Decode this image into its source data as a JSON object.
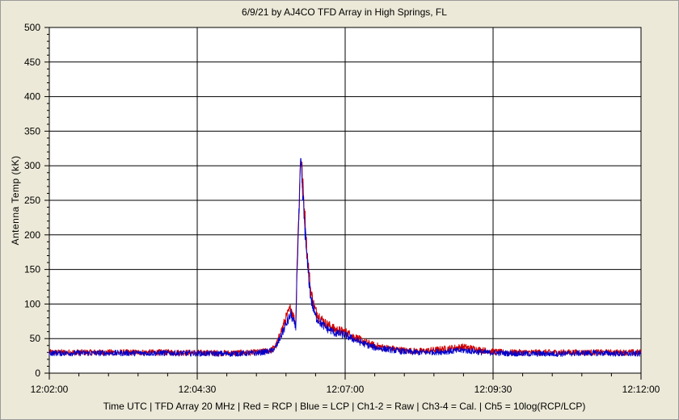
{
  "title": "6/9/21  by  AJ4CO TFD Array  in  High Springs, FL",
  "footer": "Time UTC | TFD Array 20 MHz | Red = RCP | Blue = LCP | Ch1-2 = Raw | Ch3-4 = Cal. | Ch5 = 10log(RCP/LCP)",
  "colors": {
    "background": "#ece9d8",
    "plot_background": "#ffffff",
    "grid": "#000000",
    "rcp": "#d00000",
    "lcp": "#0000cc",
    "ch5": "#008000"
  },
  "chart_data": {
    "type": "line",
    "title": "6/9/21  by  AJ4CO TFD Array  in  High Springs, FL",
    "xlabel": "Time UTC | TFD Array 20 MHz | Red = RCP | Blue = LCP | Ch1-2 = Raw | Ch3-4 = Cal. | Ch5 = 10log(RCP/LCP)",
    "ylabel": "Antenna Temp (kK)",
    "xlim": [
      "12:02:00",
      "12:12:00"
    ],
    "ylim": [
      0,
      500
    ],
    "x_tick_labels": [
      "12:02:00",
      "12:04:30",
      "12:07:00",
      "12:09:30",
      "12:12:00"
    ],
    "y_tick_labels": [
      "0",
      "50",
      "100",
      "150",
      "200",
      "250",
      "300",
      "350",
      "400",
      "450",
      "500"
    ],
    "grid": true,
    "x_seconds_from_start": [
      0,
      60,
      120,
      180,
      210,
      220,
      225,
      230,
      240,
      245,
      250,
      251,
      253,
      255,
      257,
      259,
      261,
      263,
      265,
      268,
      270,
      275,
      280,
      285,
      290,
      300,
      310,
      320,
      330,
      340,
      345,
      350,
      360,
      370,
      380,
      400,
      420,
      440,
      460,
      480,
      500,
      520,
      540,
      560,
      580,
      600
    ],
    "x": [
      "12:02:00",
      "12:03:00",
      "12:04:00",
      "12:05:00",
      "12:05:30",
      "12:05:40",
      "12:05:45",
      "12:05:50",
      "12:06:00",
      "12:06:05",
      "12:06:10",
      "12:06:11",
      "12:06:13",
      "12:06:15",
      "12:06:17",
      "12:06:19",
      "12:06:21",
      "12:06:23",
      "12:06:25",
      "12:06:28",
      "12:06:30",
      "12:06:35",
      "12:06:40",
      "12:06:45",
      "12:06:50",
      "12:07:00",
      "12:07:10",
      "12:07:20",
      "12:07:30",
      "12:07:40",
      "12:07:45",
      "12:07:50",
      "12:08:00",
      "12:08:10",
      "12:08:20",
      "12:08:40",
      "12:09:00",
      "12:09:20",
      "12:09:40",
      "12:10:00",
      "12:10:20",
      "12:10:40",
      "12:11:00",
      "12:11:20",
      "12:11:40",
      "12:12:00"
    ],
    "series": [
      {
        "name": "RCP",
        "color": "#d00000",
        "values": [
          30,
          30,
          30,
          29,
          30,
          32,
          33,
          40,
          80,
          95,
          70,
          150,
          230,
          320,
          270,
          230,
          180,
          150,
          120,
          100,
          90,
          80,
          72,
          68,
          63,
          60,
          52,
          45,
          40,
          37,
          36,
          35,
          33,
          32,
          32,
          35,
          38,
          33,
          30,
          30,
          30,
          30,
          30,
          30,
          30,
          30
        ]
      },
      {
        "name": "LCP",
        "color": "#0000cc",
        "values": [
          29,
          29,
          29,
          28,
          29,
          31,
          32,
          38,
          70,
          85,
          65,
          140,
          220,
          305,
          255,
          215,
          170,
          140,
          110,
          92,
          82,
          73,
          66,
          62,
          58,
          55,
          48,
          42,
          37,
          35,
          34,
          33,
          31,
          30,
          30,
          31,
          33,
          30,
          29,
          28,
          28,
          28,
          29,
          29,
          28,
          28
        ]
      }
    ]
  }
}
